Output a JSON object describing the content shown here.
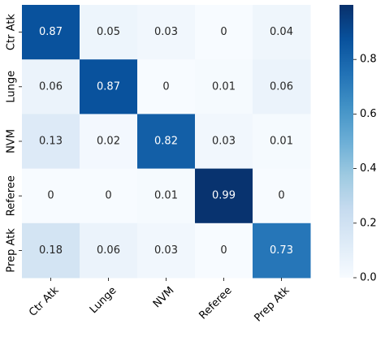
{
  "chart_data": {
    "type": "heatmap",
    "title": "",
    "xlabel": "",
    "ylabel": "",
    "x_labels": [
      "Ctr Atk",
      "Lunge",
      "NVM",
      "Referee",
      "Prep Atk"
    ],
    "y_labels": [
      "Ctr Atk",
      "Lunge",
      "NVM",
      "Referee",
      "Prep Atk"
    ],
    "values": [
      [
        0.87,
        0.05,
        0.03,
        0,
        0.04
      ],
      [
        0.06,
        0.87,
        0,
        0.01,
        0.06
      ],
      [
        0.13,
        0.02,
        0.82,
        0.03,
        0.01
      ],
      [
        0,
        0,
        0.01,
        0.99,
        0
      ],
      [
        0.18,
        0.06,
        0.03,
        0,
        0.73
      ]
    ],
    "colormap": "Blues",
    "colors": {
      "low": "#f7fbff",
      "high": "#08306b"
    },
    "colorbar": {
      "range": [
        0,
        1
      ],
      "ticks": [
        "0.0",
        "0.2",
        "0.4",
        "0.6",
        "0.8"
      ],
      "tick_values": [
        0,
        0.2,
        0.4,
        0.6,
        0.8
      ]
    },
    "x_tick_rotation_deg": 45
  }
}
